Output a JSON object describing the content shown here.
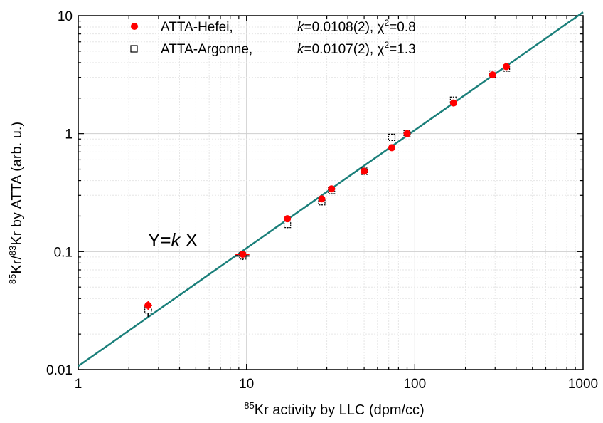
{
  "chart_data": {
    "type": "scatter",
    "x_scale": "log",
    "y_scale": "log",
    "xlim": [
      1,
      1000
    ],
    "ylim": [
      0.01,
      10
    ],
    "grid": true,
    "legend_position": "top-left",
    "xlabel": {
      "sup": "85",
      "text": "Kr activity by LLC (dpm/cc)"
    },
    "ylabel": {
      "sup1": "85",
      "mid": "Kr/",
      "sup2": "83",
      "text": "Kr by ATTA (arb. u.)"
    },
    "x_ticks": [
      {
        "value": 1,
        "label": "1"
      },
      {
        "value": 10,
        "label": "10"
      },
      {
        "value": 100,
        "label": "100"
      },
      {
        "value": 1000,
        "label": "1000"
      }
    ],
    "y_ticks": [
      {
        "value": 0.01,
        "label": "0.01"
      },
      {
        "value": 0.1,
        "label": "0.1"
      },
      {
        "value": 1,
        "label": "1"
      },
      {
        "value": 10,
        "label": "10"
      }
    ],
    "fit_line": {
      "color": "#1a7f7a",
      "k": 0.0107,
      "x_range": [
        1,
        1000
      ]
    },
    "annotation": {
      "prefix": "Y=",
      "k": "k",
      "suffix": " X"
    },
    "series": [
      {
        "name": "ATTA-Hefei,",
        "k_text": "=0.0108(2), χ",
        "chi_sup": "2",
        "chi_val": "=0.8",
        "marker": "filled-circle",
        "color": "#ff0000",
        "points": [
          {
            "x": 2.6,
            "y": 0.035,
            "yerr": 0.003,
            "xerr": 0.15
          },
          {
            "x": 9.5,
            "y": 0.095,
            "yerr": 0.006,
            "xerr": 0.9
          },
          {
            "x": 17.5,
            "y": 0.19,
            "yerr": 0.01,
            "xerr": 0.8
          },
          {
            "x": 28,
            "y": 0.28,
            "yerr": 0.015,
            "xerr": 0.8
          },
          {
            "x": 32,
            "y": 0.34,
            "yerr": 0.02,
            "xerr": 1.0
          },
          {
            "x": 50,
            "y": 0.48,
            "yerr": 0.02,
            "xerr": 1.2
          },
          {
            "x": 73,
            "y": 0.76,
            "yerr": 0.03,
            "xerr": 1.5
          },
          {
            "x": 90,
            "y": 1.0,
            "yerr": 0.04,
            "xerr": 2.0
          },
          {
            "x": 170,
            "y": 1.82,
            "yerr": 0.08,
            "xerr": 4.0
          },
          {
            "x": 290,
            "y": 3.15,
            "yerr": 0.12,
            "xerr": 6.0
          },
          {
            "x": 350,
            "y": 3.7,
            "yerr": 0.15,
            "xerr": 7.0
          }
        ]
      },
      {
        "name": "ATTA-Argonne,",
        "k_text": "=0.0107(2), χ",
        "chi_sup": "2",
        "chi_val": "=1.3",
        "marker": "open-square",
        "color": "#000000",
        "points": [
          {
            "x": 2.6,
            "y": 0.032,
            "yerr": 0.004,
            "xerr": 0.15
          },
          {
            "x": 9.5,
            "y": 0.092,
            "yerr": 0.007,
            "xerr": 0.9
          },
          {
            "x": 17.5,
            "y": 0.17,
            "yerr": 0.012,
            "xerr": 0.8
          },
          {
            "x": 28,
            "y": 0.265,
            "yerr": 0.015,
            "xerr": 0.8
          },
          {
            "x": 32,
            "y": 0.33,
            "yerr": 0.02,
            "xerr": 1.0
          },
          {
            "x": 50,
            "y": 0.48,
            "yerr": 0.02,
            "xerr": 1.2
          },
          {
            "x": 73,
            "y": 0.93,
            "yerr": 0.04,
            "xerr": 1.5
          },
          {
            "x": 90,
            "y": 1.0,
            "yerr": 0.04,
            "xerr": 2.0
          },
          {
            "x": 170,
            "y": 1.92,
            "yerr": 0.08,
            "xerr": 4.0
          },
          {
            "x": 290,
            "y": 3.2,
            "yerr": 0.12,
            "xerr": 6.0
          },
          {
            "x": 350,
            "y": 3.6,
            "yerr": 0.15,
            "xerr": 7.0
          }
        ]
      }
    ]
  }
}
